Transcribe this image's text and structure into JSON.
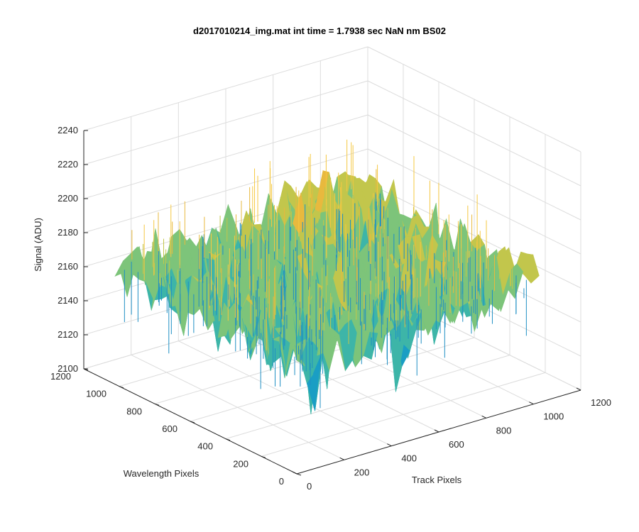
{
  "chart_data": {
    "type": "surface",
    "title": "d2017010214_img.mat int time = 1.7938 sec  NaN nm BS02",
    "xlabel": "Track Pixels",
    "ylabel": "Wavelength Pixels",
    "zlabel": "Signal (ADU)",
    "xlim": [
      0,
      1200
    ],
    "ylim": [
      0,
      1200
    ],
    "zlim": [
      2100,
      2240
    ],
    "x_ticks": [
      "0",
      "200",
      "400",
      "600",
      "800",
      "1000",
      "1200"
    ],
    "y_ticks": [
      "0",
      "200",
      "400",
      "600",
      "800",
      "1000",
      "1200"
    ],
    "z_ticks": [
      "2100",
      "2120",
      "2140",
      "2160",
      "2180",
      "2200",
      "2220",
      "2240"
    ],
    "grid": true,
    "colormap": [
      "#0072bd",
      "#1a9ec4",
      "#3db5a8",
      "#7dc47a",
      "#c2c64c",
      "#e8b93e",
      "#f5c842"
    ],
    "surface_extent": {
      "x": [
        0,
        1024
      ],
      "y": [
        0,
        1024
      ]
    },
    "signal_summary": {
      "typical_range": [
        2140,
        2200
      ],
      "mean_level": 2170,
      "max_spike": 2228,
      "min_dip": 2105
    }
  }
}
